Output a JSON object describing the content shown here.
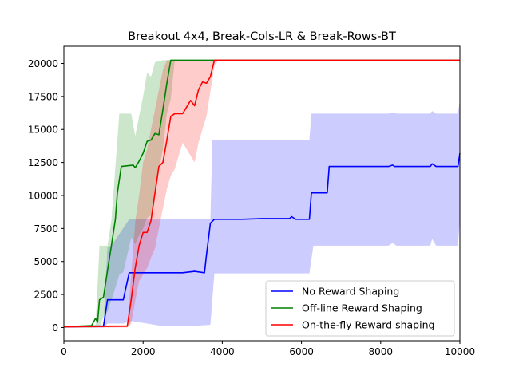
{
  "chart_data": {
    "type": "line",
    "title": "Breakout 4x4, Break-Cols-LR & Break-Rows-BT",
    "xlabel": "",
    "ylabel": "",
    "xlim": [
      0,
      10000
    ],
    "ylim": [
      -1000,
      21300
    ],
    "xticks": [
      0,
      2000,
      4000,
      6000,
      8000,
      10000
    ],
    "yticks": [
      0,
      2500,
      5000,
      7500,
      10000,
      12500,
      15000,
      17500,
      20000
    ],
    "grid": false,
    "legend_position": "lower-right",
    "series": [
      {
        "name": "No Reward Shaping",
        "color": "#0000ff",
        "band_color": "#0000ff",
        "band_opacity": 0.2,
        "mean": [
          [
            0,
            50
          ],
          [
            1000,
            100
          ],
          [
            1100,
            2100
          ],
          [
            1500,
            2100
          ],
          [
            1650,
            4150
          ],
          [
            2500,
            4150
          ],
          [
            3000,
            4150
          ],
          [
            3300,
            4250
          ],
          [
            3550,
            4150
          ],
          [
            3600,
            5500
          ],
          [
            3700,
            7900
          ],
          [
            3800,
            8200
          ],
          [
            4500,
            8200
          ],
          [
            5000,
            8250
          ],
          [
            5700,
            8250
          ],
          [
            5750,
            8400
          ],
          [
            5850,
            8200
          ],
          [
            6200,
            8200
          ],
          [
            6250,
            10200
          ],
          [
            6650,
            10200
          ],
          [
            6700,
            12200
          ],
          [
            8200,
            12200
          ],
          [
            8300,
            12300
          ],
          [
            8350,
            12200
          ],
          [
            9250,
            12200
          ],
          [
            9300,
            12400
          ],
          [
            9400,
            12200
          ],
          [
            9950,
            12200
          ],
          [
            10000,
            13200
          ]
        ],
        "lower": [
          [
            0,
            0
          ],
          [
            1000,
            0
          ],
          [
            1100,
            300
          ],
          [
            1500,
            300
          ],
          [
            1700,
            500
          ],
          [
            2500,
            100
          ],
          [
            3000,
            100
          ],
          [
            3400,
            150
          ],
          [
            3700,
            200
          ],
          [
            3800,
            4100
          ],
          [
            6200,
            4100
          ],
          [
            6300,
            6200
          ],
          [
            8200,
            6200
          ],
          [
            8300,
            6400
          ],
          [
            8400,
            6200
          ],
          [
            9250,
            6200
          ],
          [
            9300,
            6700
          ],
          [
            9400,
            6200
          ],
          [
            9950,
            6200
          ],
          [
            10000,
            8200
          ]
        ],
        "upper": [
          [
            0,
            100
          ],
          [
            1000,
            200
          ],
          [
            1100,
            6100
          ],
          [
            1200,
            6200
          ],
          [
            1650,
            8200
          ],
          [
            3700,
            8200
          ],
          [
            3750,
            14200
          ],
          [
            6200,
            14200
          ],
          [
            6250,
            16200
          ],
          [
            8200,
            16200
          ],
          [
            8300,
            16300
          ],
          [
            8400,
            16200
          ],
          [
            9250,
            16200
          ],
          [
            9300,
            16400
          ],
          [
            9400,
            16200
          ],
          [
            9950,
            16200
          ],
          [
            10000,
            17200
          ]
        ]
      },
      {
        "name": "Off-line Reward Shaping",
        "color": "#008000",
        "band_color": "#008000",
        "band_opacity": 0.2,
        "mean": [
          [
            0,
            50
          ],
          [
            700,
            150
          ],
          [
            800,
            700
          ],
          [
            850,
            400
          ],
          [
            900,
            2100
          ],
          [
            1000,
            2300
          ],
          [
            1100,
            4300
          ],
          [
            1200,
            6200
          ],
          [
            1300,
            8200
          ],
          [
            1350,
            10200
          ],
          [
            1450,
            12200
          ],
          [
            1750,
            12300
          ],
          [
            1800,
            12100
          ],
          [
            1900,
            12600
          ],
          [
            2000,
            13200
          ],
          [
            2100,
            14100
          ],
          [
            2200,
            14200
          ],
          [
            2300,
            14700
          ],
          [
            2400,
            14600
          ],
          [
            2500,
            16500
          ],
          [
            2600,
            18500
          ],
          [
            2700,
            20250
          ],
          [
            10000,
            20250
          ]
        ],
        "lower": [
          [
            0,
            0
          ],
          [
            800,
            0
          ],
          [
            900,
            50
          ],
          [
            1000,
            800
          ],
          [
            1100,
            1200
          ],
          [
            1200,
            2100
          ],
          [
            1300,
            3000
          ],
          [
            1400,
            4000
          ],
          [
            1500,
            4200
          ],
          [
            1600,
            5500
          ],
          [
            1700,
            6800
          ],
          [
            1800,
            6300
          ],
          [
            1900,
            7000
          ],
          [
            2000,
            7500
          ],
          [
            2100,
            8300
          ],
          [
            2200,
            8500
          ],
          [
            2300,
            10000
          ],
          [
            2400,
            12000
          ],
          [
            2500,
            13500
          ],
          [
            2600,
            16200
          ],
          [
            2700,
            17300
          ],
          [
            2800,
            20250
          ],
          [
            10000,
            20250
          ]
        ],
        "upper": [
          [
            0,
            100
          ],
          [
            800,
            200
          ],
          [
            900,
            6200
          ],
          [
            1100,
            6200
          ],
          [
            1200,
            8100
          ],
          [
            1300,
            12200
          ],
          [
            1400,
            16200
          ],
          [
            1700,
            16200
          ],
          [
            1800,
            14500
          ],
          [
            1900,
            16000
          ],
          [
            2000,
            17500
          ],
          [
            2100,
            19300
          ],
          [
            2200,
            19000
          ],
          [
            2300,
            20100
          ],
          [
            2500,
            20250
          ],
          [
            10000,
            20250
          ]
        ]
      },
      {
        "name": "On-the-fly Reward shaping",
        "color": "#ff0000",
        "band_color": "#ff0000",
        "band_opacity": 0.2,
        "mean": [
          [
            0,
            50
          ],
          [
            1600,
            100
          ],
          [
            1700,
            2100
          ],
          [
            1800,
            4500
          ],
          [
            1900,
            6200
          ],
          [
            2000,
            7200
          ],
          [
            2100,
            7200
          ],
          [
            2200,
            8100
          ],
          [
            2300,
            10200
          ],
          [
            2400,
            12200
          ],
          [
            2500,
            12500
          ],
          [
            2600,
            14200
          ],
          [
            2700,
            16000
          ],
          [
            2800,
            16200
          ],
          [
            3000,
            16200
          ],
          [
            3200,
            17200
          ],
          [
            3300,
            16800
          ],
          [
            3400,
            18000
          ],
          [
            3500,
            18600
          ],
          [
            3600,
            18500
          ],
          [
            3700,
            19000
          ],
          [
            3800,
            20250
          ],
          [
            10000,
            20250
          ]
        ],
        "lower": [
          [
            0,
            0
          ],
          [
            1600,
            0
          ],
          [
            1700,
            300
          ],
          [
            1800,
            2000
          ],
          [
            1900,
            3500
          ],
          [
            2000,
            4000
          ],
          [
            2100,
            4500
          ],
          [
            2200,
            5300
          ],
          [
            2300,
            6000
          ],
          [
            2400,
            7500
          ],
          [
            2500,
            9000
          ],
          [
            2600,
            10500
          ],
          [
            2700,
            11500
          ],
          [
            2800,
            12000
          ],
          [
            2900,
            13000
          ],
          [
            3000,
            14000
          ],
          [
            3200,
            13000
          ],
          [
            3300,
            12500
          ],
          [
            3400,
            14000
          ],
          [
            3500,
            15000
          ],
          [
            3600,
            16000
          ],
          [
            3800,
            19800
          ],
          [
            3900,
            20250
          ],
          [
            10000,
            20250
          ]
        ],
        "upper": [
          [
            0,
            100
          ],
          [
            1600,
            200
          ],
          [
            1700,
            4000
          ],
          [
            1800,
            8000
          ],
          [
            1900,
            10000
          ],
          [
            2000,
            12500
          ],
          [
            2100,
            13500
          ],
          [
            2200,
            15000
          ],
          [
            2300,
            16500
          ],
          [
            2400,
            18000
          ],
          [
            2500,
            19500
          ],
          [
            2600,
            20250
          ],
          [
            10000,
            20250
          ]
        ]
      }
    ]
  }
}
